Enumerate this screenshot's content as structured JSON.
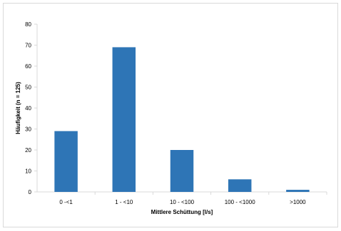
{
  "chart_data": {
    "type": "bar",
    "categories": [
      "0 -<1",
      "1 - <10",
      "10 - <100",
      "100 - <1000",
      ">1000"
    ],
    "values": [
      29,
      69,
      20,
      6,
      1
    ],
    "title": "",
    "xlabel": "Mittlere Schüttung [l/s]",
    "ylabel": "Häufigkeit (n = 125)",
    "ylim": [
      0,
      80
    ],
    "yticks": [
      0,
      10,
      20,
      30,
      40,
      50,
      60,
      70,
      80
    ],
    "grid": false,
    "legend": "none",
    "bar_color": "#2e75b6",
    "axis_color": "#d9d9d9"
  }
}
